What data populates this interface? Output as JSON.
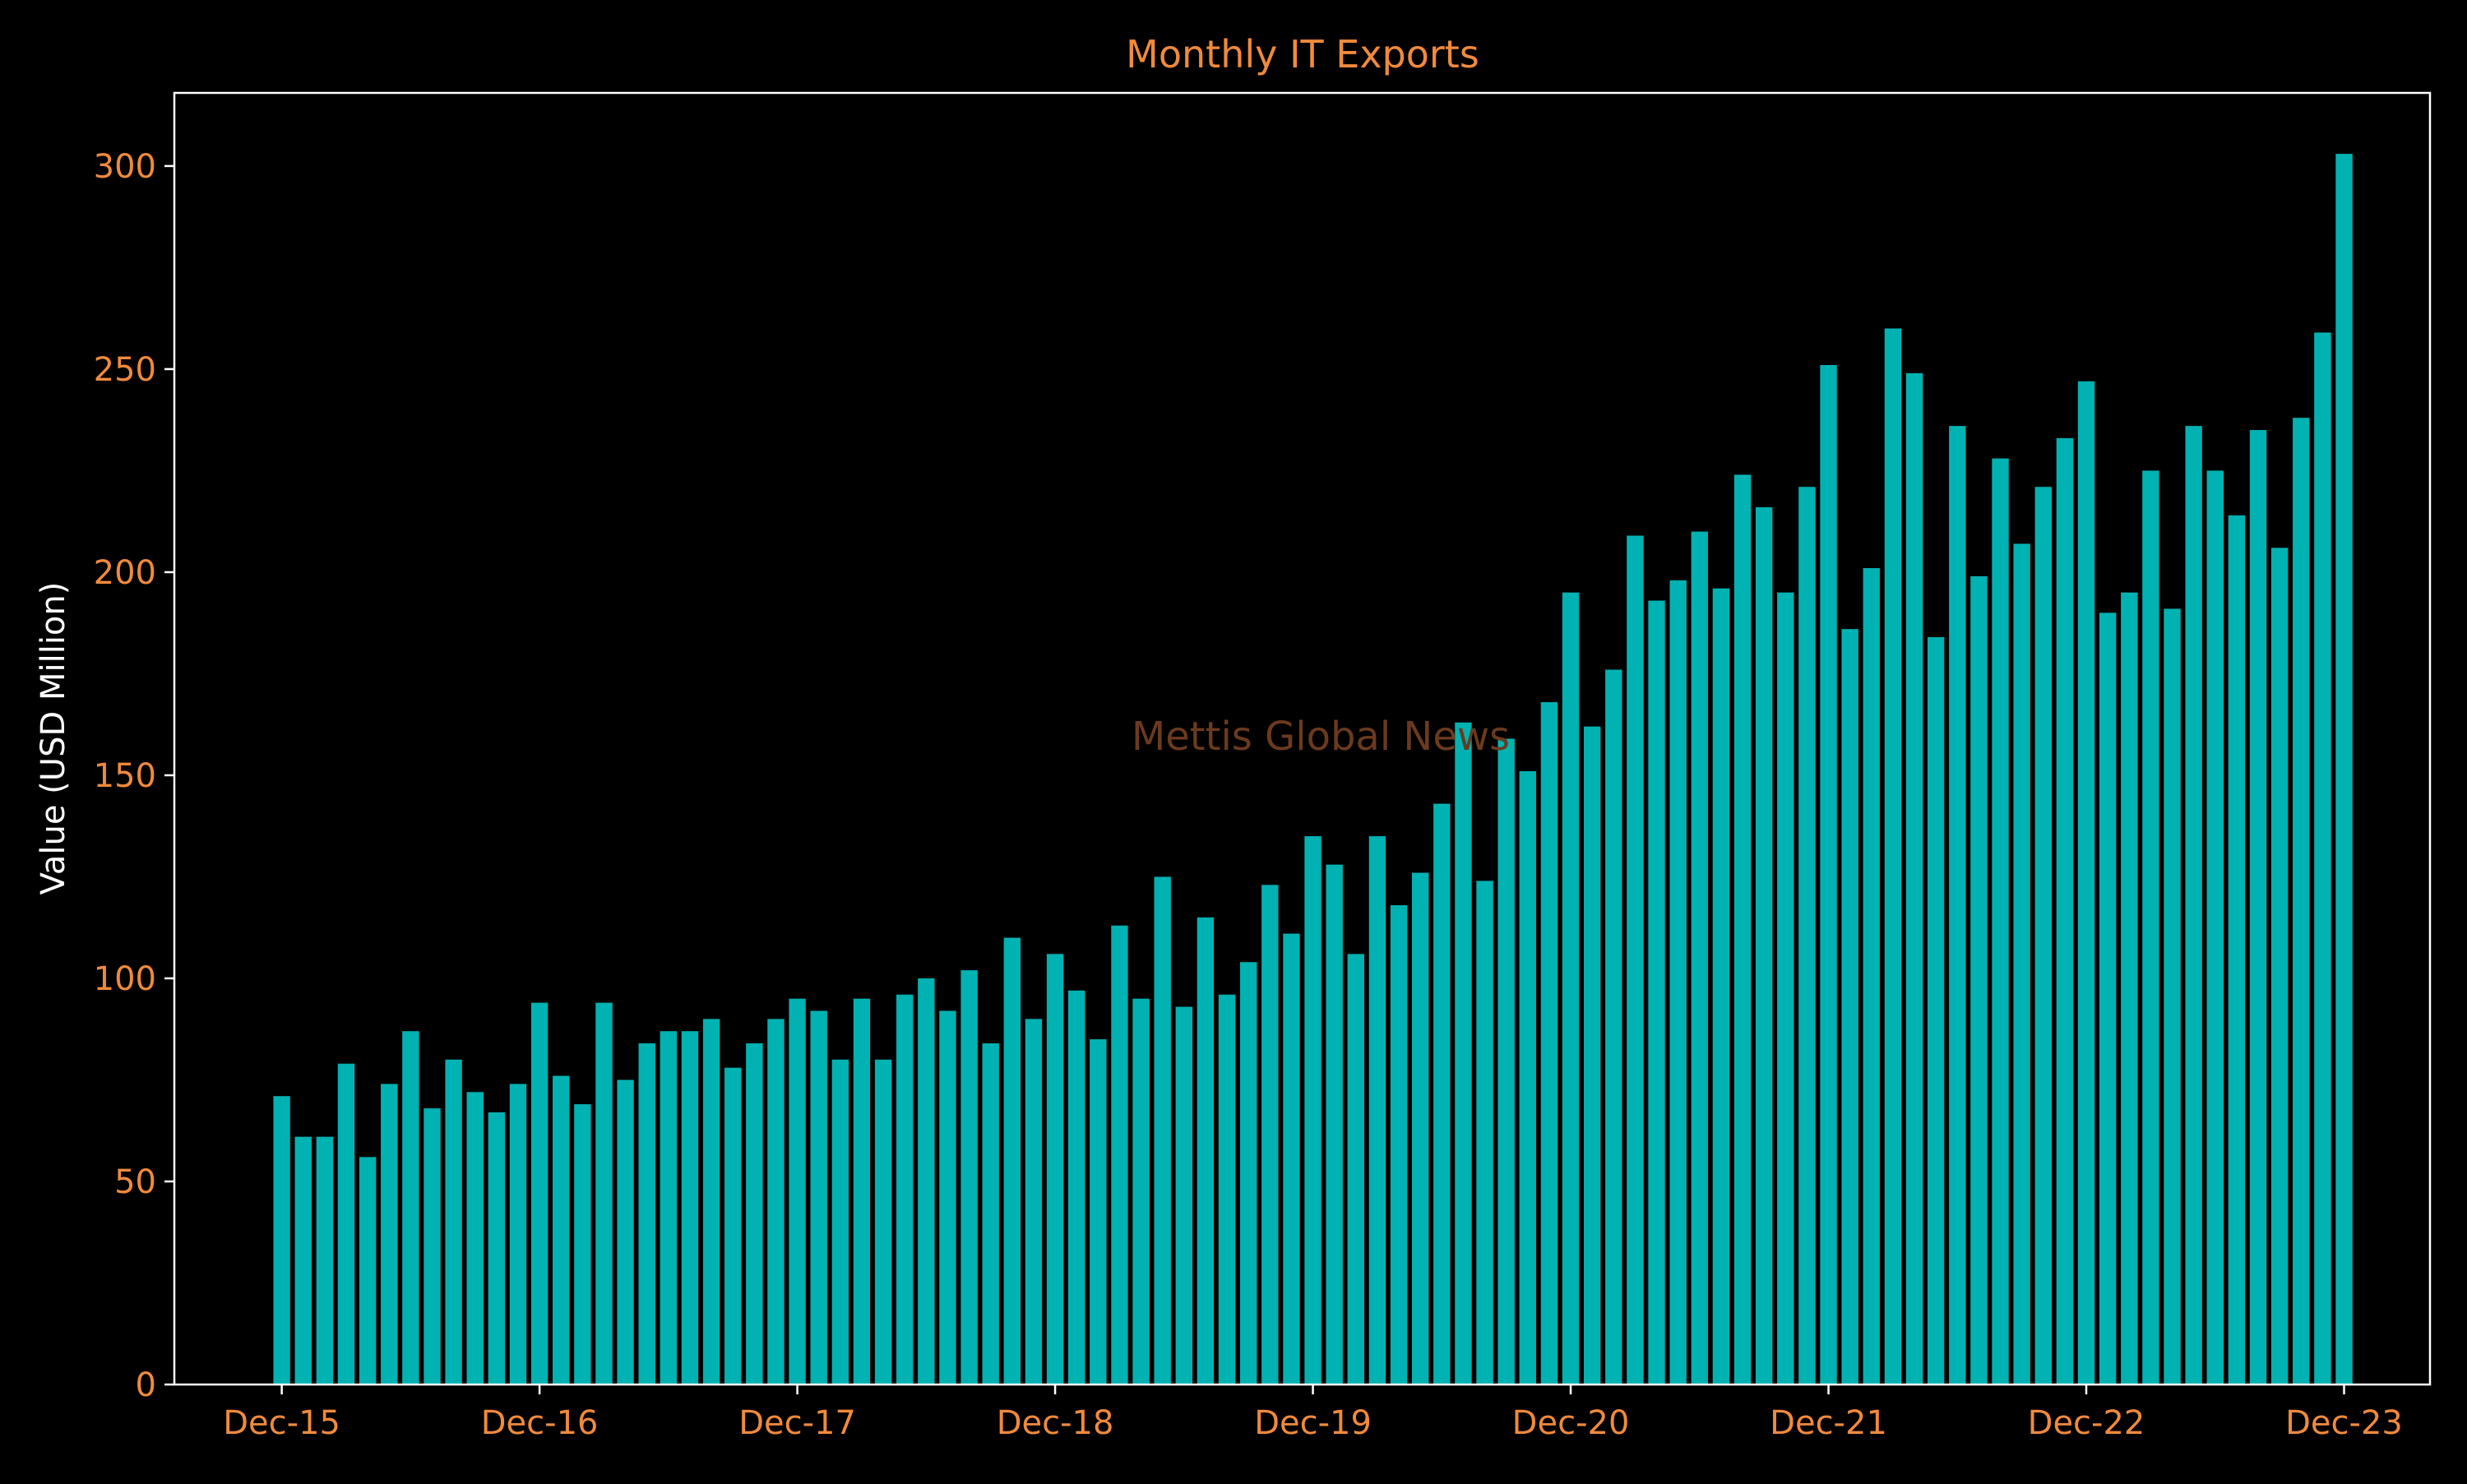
{
  "colors": {
    "background": "#000000",
    "bar": "#00b2b2",
    "axis_frame": "#ffffff",
    "tick_text": "#f08a3c",
    "title": "#f08a3c",
    "ylabel": "#ffffff",
    "watermark": "#6b3a1e"
  },
  "watermark": "Mettis Global News",
  "chart_data": {
    "type": "bar",
    "title": "Monthly IT Exports",
    "xlabel": "",
    "ylabel": "Value (USD Million)",
    "ylim": [
      0,
      318
    ],
    "yticks": [
      0,
      50,
      100,
      150,
      200,
      250,
      300
    ],
    "grid": false,
    "legend": "none",
    "x_tick_labels": [
      {
        "label": "Dec-15",
        "index": 0
      },
      {
        "label": "Dec-16",
        "index": 12
      },
      {
        "label": "Dec-17",
        "index": 24
      },
      {
        "label": "Dec-18",
        "index": 36
      },
      {
        "label": "Dec-19",
        "index": 48
      },
      {
        "label": "Dec-20",
        "index": 60
      },
      {
        "label": "Dec-21",
        "index": 72
      },
      {
        "label": "Dec-22",
        "index": 84
      },
      {
        "label": "Dec-23",
        "index": 96
      }
    ],
    "x_range": [
      -5,
      100
    ],
    "categories": [
      "Dec-15",
      "Jan-16",
      "Feb-16",
      "Mar-16",
      "Apr-16",
      "May-16",
      "Jun-16",
      "Jul-16",
      "Aug-16",
      "Sep-16",
      "Oct-16",
      "Nov-16",
      "Dec-16",
      "Jan-17",
      "Feb-17",
      "Mar-17",
      "Apr-17",
      "May-17",
      "Jun-17",
      "Jul-17",
      "Aug-17",
      "Sep-17",
      "Oct-17",
      "Nov-17",
      "Dec-17",
      "Jan-18",
      "Feb-18",
      "Mar-18",
      "Apr-18",
      "May-18",
      "Jun-18",
      "Jul-18",
      "Aug-18",
      "Sep-18",
      "Oct-18",
      "Nov-18",
      "Dec-18",
      "Jan-19",
      "Feb-19",
      "Mar-19",
      "Apr-19",
      "May-19",
      "Jun-19",
      "Jul-19",
      "Aug-19",
      "Sep-19",
      "Oct-19",
      "Nov-19",
      "Dec-19",
      "Jan-20",
      "Feb-20",
      "Mar-20",
      "Apr-20",
      "May-20",
      "Jun-20",
      "Jul-20",
      "Aug-20",
      "Sep-20",
      "Oct-20",
      "Nov-20",
      "Dec-20",
      "Jan-21",
      "Feb-21",
      "Mar-21",
      "Apr-21",
      "May-21",
      "Jun-21",
      "Jul-21",
      "Aug-21",
      "Sep-21",
      "Oct-21",
      "Nov-21",
      "Dec-21",
      "Jan-22",
      "Feb-22",
      "Mar-22",
      "Apr-22",
      "May-22",
      "Jun-22",
      "Jul-22",
      "Aug-22",
      "Sep-22",
      "Oct-22",
      "Nov-22",
      "Dec-22",
      "Jan-23",
      "Feb-23",
      "Mar-23",
      "Apr-23",
      "May-23",
      "Jun-23",
      "Jul-23",
      "Aug-23",
      "Sep-23",
      "Oct-23",
      "Nov-23",
      "Dec-23"
    ],
    "values": [
      71,
      61,
      61,
      79,
      56,
      74,
      87,
      68,
      80,
      72,
      67,
      74,
      94,
      76,
      69,
      94,
      75,
      84,
      87,
      87,
      90,
      78,
      84,
      90,
      95,
      92,
      80,
      95,
      80,
      96,
      100,
      92,
      102,
      84,
      110,
      90,
      106,
      97,
      85,
      113,
      95,
      125,
      93,
      115,
      96,
      104,
      123,
      111,
      135,
      128,
      106,
      135,
      118,
      126,
      143,
      163,
      124,
      159,
      151,
      168,
      195,
      162,
      176,
      209,
      193,
      198,
      210,
      196,
      224,
      216,
      195,
      221,
      251,
      186,
      201,
      260,
      249,
      184,
      236,
      199,
      228,
      207,
      221,
      233,
      247,
      190,
      195,
      225,
      191,
      236,
      225,
      214,
      235,
      206,
      238,
      259,
      303
    ]
  }
}
